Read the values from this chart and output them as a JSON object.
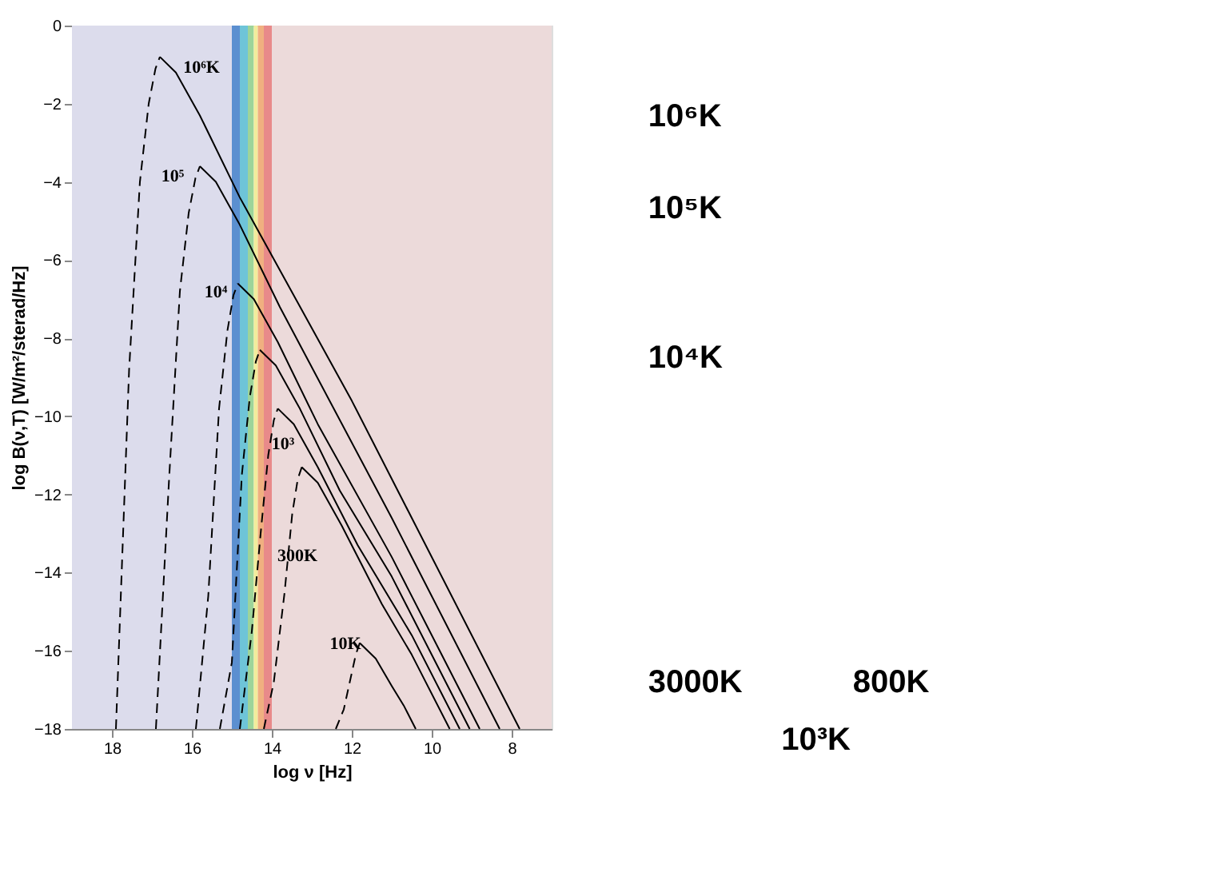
{
  "chart_data": [
    {
      "type": "line",
      "xlabel": "log ν [Hz]",
      "ylabel": "log B(ν,T) [W/m²/sterad/Hz]",
      "xlim": [
        19,
        7
      ],
      "xticks": [
        18,
        16,
        14,
        12,
        10,
        8
      ],
      "ylim": [
        -18,
        0
      ],
      "yticks": [
        -18,
        -16,
        -14,
        -12,
        -10,
        -8,
        -6,
        -4,
        -2,
        0
      ],
      "grid": false,
      "series": [
        {
          "color": "#000000",
          "line_style": "dashed",
          "x": [
            17.9,
            17.57,
            17.3,
            17.08,
            16.91,
            16.8
          ],
          "values": [
            -18,
            -8.8,
            -4.0,
            -2.0,
            -1.1,
            -0.8
          ]
        },
        {
          "color": "#000000",
          "line_style": "solid",
          "x": [
            16.8,
            16.4,
            15.8,
            14.8,
            12,
            7.8
          ],
          "values": [
            -0.8,
            -1.2,
            -2.3,
            -4.4,
            -9.6,
            -18
          ]
        },
        {
          "color": "#000000",
          "line_style": "dashed",
          "x": [
            16.9,
            16.57,
            16.3,
            16.08,
            15.91,
            15.8
          ],
          "values": [
            -18,
            -11.6,
            -6.8,
            -4.8,
            -3.9,
            -3.6
          ]
        },
        {
          "color": "#000000",
          "line_style": "solid",
          "x": [
            15.8,
            15.4,
            14.8,
            13.8,
            11,
            8.3
          ],
          "values": [
            -3.6,
            -4.0,
            -5.1,
            -7.2,
            -12.6,
            -18
          ]
        },
        {
          "color": "#000000",
          "line_style": "dashed",
          "x": [
            15.9,
            15.59,
            15.32,
            15.11,
            14.96,
            14.85
          ],
          "values": [
            -18,
            -14.6,
            -9.8,
            -7.8,
            -6.9,
            -6.6
          ]
        },
        {
          "color": "#000000",
          "line_style": "solid",
          "x": [
            14.85,
            14.45,
            13.85,
            12.85,
            11,
            8.8
          ],
          "values": [
            -6.6,
            -7.0,
            -8.1,
            -10.2,
            -13.6,
            -18
          ]
        },
        {
          "color": "#000000",
          "line_style": "dashed",
          "x": [
            15.3,
            15.0,
            14.75,
            14.55,
            14.4,
            14.3
          ],
          "values": [
            -18,
            -16.3,
            -11.5,
            -9.5,
            -8.6,
            -8.3
          ]
        },
        {
          "color": "#000000",
          "line_style": "solid",
          "x": [
            14.3,
            13.9,
            13.3,
            12.3,
            11,
            9.05
          ],
          "values": [
            -8.3,
            -8.7,
            -9.8,
            -11.9,
            -14.1,
            -18
          ]
        },
        {
          "color": "#000000",
          "line_style": "dashed",
          "x": [
            14.8,
            14.5,
            14.28,
            14.09,
            13.95,
            13.85
          ],
          "values": [
            -18,
            -15.5,
            -13.0,
            -11.0,
            -10.1,
            -9.8
          ]
        },
        {
          "color": "#000000",
          "line_style": "solid",
          "x": [
            13.85,
            13.45,
            12.85,
            11.85,
            10.5,
            9.3
          ],
          "values": [
            -9.8,
            -10.2,
            -11.3,
            -13.3,
            -15.6,
            -18
          ]
        },
        {
          "color": "#000000",
          "line_style": "dashed",
          "x": [
            14.2,
            13.95,
            13.68,
            13.49,
            13.35,
            13.25
          ],
          "values": [
            -18,
            -16.8,
            -14.5,
            -12.5,
            -11.6,
            -11.3
          ]
        },
        {
          "color": "#000000",
          "line_style": "solid",
          "x": [
            13.25,
            12.85,
            12.25,
            11.25,
            10.5,
            9.55
          ],
          "values": [
            -11.3,
            -11.7,
            -12.8,
            -14.8,
            -16.1,
            -18
          ]
        },
        {
          "color": "#000000",
          "line_style": "dashed",
          "x": [
            12.4,
            12.2,
            12.05,
            11.9,
            11.8
          ],
          "values": [
            -18,
            -17.5,
            -16.8,
            -16.1,
            -15.8
          ]
        },
        {
          "color": "#000000",
          "line_style": "solid",
          "x": [
            11.8,
            11.4,
            11.0,
            10.7,
            10.4
          ],
          "values": [
            -15.8,
            -16.2,
            -16.9,
            -17.4,
            -18
          ]
        }
      ],
      "bands": [
        {
          "axis": "x",
          "from": 19,
          "to": 15,
          "color": "#dcdcec"
        },
        {
          "axis": "x",
          "from": 15,
          "to": 14.8,
          "color": "#5b8fd0"
        },
        {
          "axis": "x",
          "from": 14.8,
          "to": 14.6,
          "color": "#6ec4d8"
        },
        {
          "axis": "x",
          "from": 14.6,
          "to": 14.45,
          "color": "#9dd49a"
        },
        {
          "axis": "x",
          "from": 14.45,
          "to": 14.35,
          "color": "#f2ec9c"
        },
        {
          "axis": "x",
          "from": 14.35,
          "to": 14.2,
          "color": "#f0b080"
        },
        {
          "axis": "x",
          "from": 14.2,
          "to": 14,
          "color": "#e88a8a"
        },
        {
          "axis": "x",
          "from": 14,
          "to": 7,
          "color": "#ecdada"
        }
      ],
      "annotations": [
        "10⁶K",
        "10⁵",
        "10⁴",
        "10³",
        "300K",
        "10K"
      ]
    },
    {
      "type": "other",
      "annotations": [
        "10⁶K",
        "10⁵K",
        "10⁴K",
        "3000K",
        "800K",
        "10³K"
      ]
    }
  ]
}
